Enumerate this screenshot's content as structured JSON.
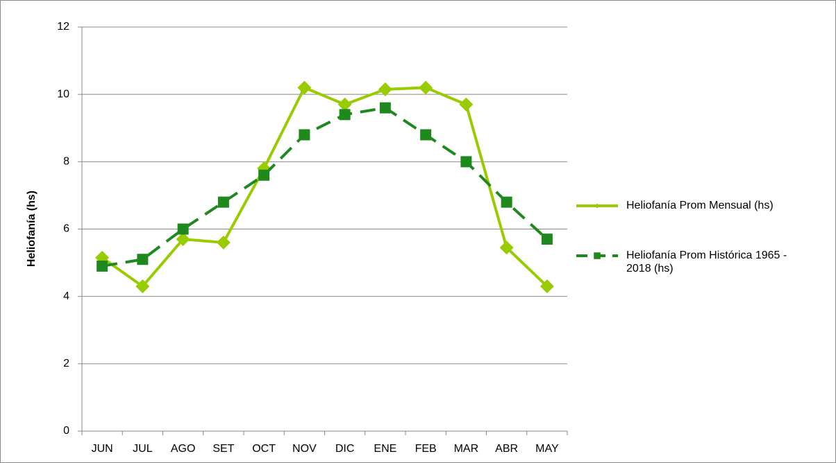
{
  "chart_data": {
    "type": "line",
    "y_label": "Heliofanía (hs)",
    "categories": [
      "JUN",
      "JUL",
      "AGO",
      "SET",
      "OCT",
      "NOV",
      "DIC",
      "ENE",
      "FEB",
      "MAR",
      "ABR",
      "MAY"
    ],
    "series": [
      {
        "name": "Heliofanía Prom Mensual (hs)",
        "color": "#99cc00",
        "marker": "diamond",
        "dashed": false,
        "values": [
          5.15,
          4.3,
          5.7,
          5.6,
          7.8,
          10.2,
          9.7,
          10.15,
          10.2,
          9.7,
          5.45,
          4.3
        ]
      },
      {
        "name": "Heliofanía Prom Histórica 1965 - 2018 (hs)",
        "color": "#1e8a1e",
        "marker": "square",
        "dashed": true,
        "values": [
          4.9,
          5.1,
          6.0,
          6.8,
          7.6,
          8.8,
          9.4,
          9.6,
          8.8,
          8.0,
          6.8,
          5.7
        ]
      }
    ],
    "ylim": [
      0,
      12
    ],
    "yticks": [
      0,
      2,
      4,
      6,
      8,
      10,
      12
    ],
    "grid": true,
    "legend": "right"
  }
}
